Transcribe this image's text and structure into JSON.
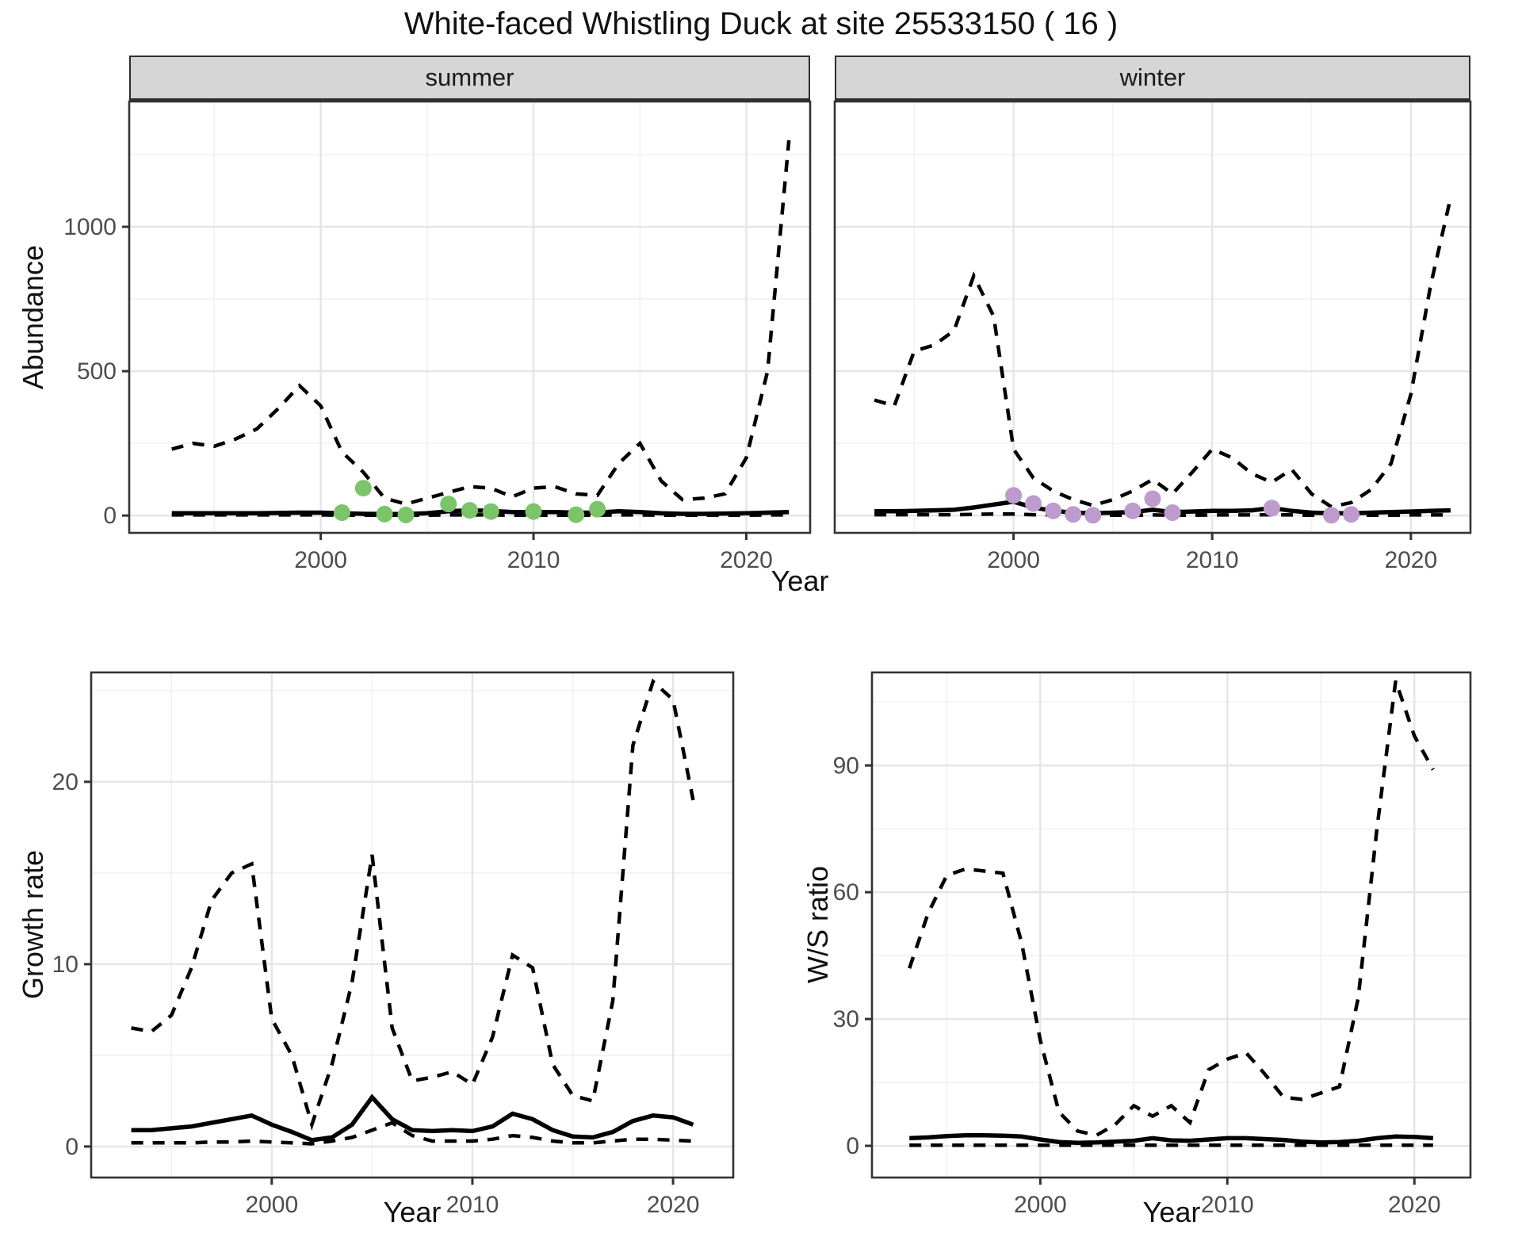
{
  "title": "White-faaced placeholder",
  "colors": {
    "summer_points": "#7cc46a",
    "winter_points": "#bd9bcd",
    "line": "#000000",
    "strip_bg": "#d5d5d5",
    "grid_major": "#e5e5e5",
    "grid_minor": "#f1f1f1",
    "tick_text": "#4d4d4d",
    "panel_border": "#333333"
  },
  "axis_titles": {
    "abundance": "Abundance",
    "year_top": "Year",
    "growth": "Growth rate",
    "ws": "W/S ratio",
    "year_growth": "Year",
    "year_ws": "Year"
  },
  "facets": {
    "summer": "summer",
    "winter": "winter"
  },
  "chart_data": [
    {
      "id": "summer",
      "type": "line",
      "facet_label": "summer",
      "ylabel": "Abundance",
      "xlabel": "Year",
      "xlim": [
        1991,
        2023
      ],
      "ylim": [
        -60,
        1434
      ],
      "xticks": [
        2000,
        2010,
        2020
      ],
      "xtick_labels": [
        "2000",
        "2010",
        "2020"
      ],
      "xminor": [
        1995,
        2005,
        2015
      ],
      "yticks": [
        0,
        500,
        1000
      ],
      "ytick_labels": [
        "0",
        "500",
        "1000"
      ],
      "yminor": [
        250,
        750,
        1250
      ],
      "show_y_labels": true,
      "x": [
        1993,
        1994,
        1995,
        1996,
        1997,
        1998,
        1999,
        2000,
        2001,
        2002,
        2003,
        2004,
        2005,
        2006,
        2007,
        2008,
        2009,
        2010,
        2011,
        2012,
        2013,
        2014,
        2015,
        2016,
        2017,
        2018,
        2019,
        2020,
        2021,
        2022
      ],
      "series": [
        {
          "name": "upper_ci",
          "style": "dashed",
          "values": [
            230,
            250,
            240,
            265,
            300,
            370,
            450,
            380,
            220,
            150,
            60,
            40,
            60,
            80,
            100,
            95,
            65,
            95,
            100,
            75,
            70,
            180,
            250,
            120,
            55,
            60,
            75,
            200,
            500,
            1300
          ]
        },
        {
          "name": "median",
          "style": "solid",
          "values": [
            8,
            8,
            8,
            8,
            8,
            9,
            10,
            10,
            8,
            6,
            5,
            5,
            8,
            15,
            18,
            16,
            12,
            12,
            12,
            10,
            10,
            15,
            12,
            8,
            6,
            6,
            7,
            8,
            10,
            12
          ]
        },
        {
          "name": "lower_ci",
          "style": "dashed",
          "values": [
            2,
            2,
            2,
            2,
            2,
            2,
            2,
            2,
            1,
            1,
            1,
            1,
            1,
            2,
            2,
            2,
            1,
            1,
            1,
            1,
            1,
            2,
            2,
            1,
            1,
            1,
            1,
            1,
            2,
            2
          ]
        }
      ],
      "points": {
        "name": "summer_counts",
        "color_key": "summer_points",
        "xy": [
          [
            2001,
            10
          ],
          [
            2002,
            95
          ],
          [
            2003,
            5
          ],
          [
            2004,
            2
          ],
          [
            2006,
            40
          ],
          [
            2007,
            18
          ],
          [
            2008,
            14
          ],
          [
            2010,
            14
          ],
          [
            2012,
            3
          ],
          [
            2013,
            22
          ]
        ]
      }
    },
    {
      "id": "winter",
      "type": "line",
      "facet_label": "winter",
      "ylabel": "Abundance",
      "xlabel": "Year",
      "xlim": [
        1991,
        2023
      ],
      "ylim": [
        -60,
        1434
      ],
      "xticks": [
        2000,
        2010,
        2020
      ],
      "xtick_labels": [
        "2000",
        "2010",
        "2020"
      ],
      "xminor": [
        1995,
        2005,
        2015
      ],
      "yticks": [
        0,
        500,
        1000
      ],
      "ytick_labels": [
        "0",
        "500",
        "1000"
      ],
      "yminor": [
        250,
        750,
        1250
      ],
      "show_y_labels": false,
      "x": [
        1993,
        1994,
        1995,
        1996,
        1997,
        1998,
        1999,
        2000,
        2001,
        2002,
        2003,
        2004,
        2005,
        2006,
        2007,
        2008,
        2009,
        2010,
        2011,
        2012,
        2013,
        2014,
        2015,
        2016,
        2017,
        2018,
        2019,
        2020,
        2021,
        2022
      ],
      "series": [
        {
          "name": "upper_ci",
          "style": "dashed",
          "values": [
            400,
            380,
            570,
            590,
            640,
            830,
            690,
            230,
            130,
            85,
            55,
            35,
            55,
            85,
            125,
            75,
            150,
            230,
            200,
            145,
            115,
            160,
            75,
            30,
            45,
            90,
            180,
            420,
            800,
            1100
          ]
        },
        {
          "name": "median",
          "style": "solid",
          "values": [
            15,
            15,
            16,
            18,
            20,
            28,
            38,
            48,
            28,
            16,
            10,
            8,
            10,
            12,
            20,
            12,
            14,
            16,
            16,
            18,
            26,
            16,
            10,
            8,
            8,
            10,
            12,
            14,
            16,
            18
          ]
        },
        {
          "name": "lower_ci",
          "style": "dashed",
          "values": [
            3,
            3,
            3,
            3,
            3,
            4,
            5,
            5,
            3,
            2,
            1,
            1,
            1,
            1,
            2,
            1,
            1,
            2,
            2,
            2,
            3,
            2,
            1,
            1,
            1,
            1,
            1,
            2,
            2,
            2
          ]
        }
      ],
      "points": {
        "name": "winter_counts",
        "color_key": "winter_points",
        "xy": [
          [
            2000,
            70
          ],
          [
            2001,
            42
          ],
          [
            2002,
            16
          ],
          [
            2003,
            4
          ],
          [
            2004,
            1
          ],
          [
            2006,
            16
          ],
          [
            2007,
            58
          ],
          [
            2008,
            10
          ],
          [
            2013,
            26
          ],
          [
            2016,
            1
          ],
          [
            2017,
            4
          ]
        ]
      }
    },
    {
      "id": "growth",
      "type": "line",
      "facet_label": "",
      "ylabel": "Growth rate",
      "xlabel": "Year",
      "xlim": [
        1991,
        2023
      ],
      "ylim": [
        -1.7,
        26
      ],
      "xticks": [
        2000,
        2010,
        2020
      ],
      "xtick_labels": [
        "2000",
        "2010",
        "2020"
      ],
      "xminor": [
        1995,
        2005,
        2015
      ],
      "yticks": [
        0,
        10,
        20
      ],
      "ytick_labels": [
        "0",
        "10",
        "20"
      ],
      "yminor": [
        5,
        15,
        25
      ],
      "show_y_labels": true,
      "x": [
        1993,
        1994,
        1995,
        1996,
        1997,
        1998,
        1999,
        2000,
        2001,
        2002,
        2003,
        2004,
        2005,
        2006,
        2007,
        2008,
        2009,
        2010,
        2011,
        2012,
        2013,
        2014,
        2015,
        2016,
        2017,
        2018,
        2019,
        2020,
        2021
      ],
      "series": [
        {
          "name": "upper_ci",
          "style": "dashed",
          "values": [
            6.5,
            6.3,
            7.2,
            9.8,
            13.5,
            15.0,
            15.5,
            7.0,
            5.0,
            1.2,
            4.5,
            9.0,
            16.0,
            6.5,
            3.6,
            3.8,
            4.1,
            3.4,
            6.0,
            10.5,
            9.8,
            4.5,
            2.8,
            2.5,
            8.0,
            22.0,
            25.5,
            24.5,
            19.0
          ]
        },
        {
          "name": "median",
          "style": "solid",
          "values": [
            0.9,
            0.9,
            1.0,
            1.1,
            1.3,
            1.5,
            1.7,
            1.2,
            0.8,
            0.35,
            0.5,
            1.2,
            2.7,
            1.5,
            0.9,
            0.85,
            0.9,
            0.85,
            1.1,
            1.8,
            1.5,
            0.9,
            0.55,
            0.5,
            0.8,
            1.4,
            1.7,
            1.6,
            1.2
          ]
        },
        {
          "name": "lower_ci",
          "style": "dashed",
          "values": [
            0.2,
            0.2,
            0.2,
            0.2,
            0.25,
            0.25,
            0.3,
            0.25,
            0.2,
            0.15,
            0.3,
            0.5,
            0.9,
            1.3,
            0.6,
            0.3,
            0.3,
            0.3,
            0.4,
            0.6,
            0.5,
            0.3,
            0.2,
            0.2,
            0.3,
            0.4,
            0.4,
            0.35,
            0.3
          ]
        }
      ],
      "points": null
    },
    {
      "id": "ws_ratio",
      "type": "line",
      "facet_label": "",
      "ylabel": "W/S ratio",
      "xlabel": "Year",
      "xlim": [
        1991,
        2023
      ],
      "ylim": [
        -7.5,
        112
      ],
      "xticks": [
        2000,
        2010,
        2020
      ],
      "xtick_labels": [
        "2000",
        "2010",
        "2020"
      ],
      "xminor": [
        1995,
        2005,
        2015
      ],
      "yticks": [
        0,
        30,
        60,
        90
      ],
      "ytick_labels": [
        "0",
        "30",
        "60",
        "90"
      ],
      "yminor": [
        15,
        45,
        75,
        105
      ],
      "show_y_labels": true,
      "x": [
        1993,
        1994,
        1995,
        1996,
        1997,
        1998,
        1999,
        2000,
        2001,
        2002,
        2003,
        2004,
        2005,
        2006,
        2007,
        2008,
        2009,
        2010,
        2011,
        2012,
        2013,
        2014,
        2015,
        2016,
        2017,
        2018,
        2019,
        2020,
        2021
      ],
      "series": [
        {
          "name": "upper_ci",
          "style": "dashed",
          "values": [
            42,
            55,
            64,
            65.5,
            65,
            64.5,
            48,
            25,
            8,
            3.5,
            2.5,
            5,
            9.5,
            7,
            9.5,
            5.5,
            18,
            20.5,
            22,
            17,
            11.5,
            11,
            12.5,
            14,
            35,
            75,
            110,
            97,
            89
          ]
        },
        {
          "name": "median",
          "style": "solid",
          "values": [
            1.8,
            2.0,
            2.3,
            2.5,
            2.5,
            2.4,
            2.2,
            1.5,
            0.9,
            0.7,
            0.8,
            1.0,
            1.2,
            1.8,
            1.3,
            1.2,
            1.5,
            1.8,
            1.8,
            1.6,
            1.4,
            1.0,
            0.8,
            0.9,
            1.2,
            1.8,
            2.2,
            2.1,
            1.8
          ]
        },
        {
          "name": "lower_ci",
          "style": "dashed",
          "values": [
            0.15,
            0.15,
            0.15,
            0.15,
            0.15,
            0.15,
            0.15,
            0.15,
            0.15,
            0.15,
            0.15,
            0.15,
            0.15,
            0.15,
            0.15,
            0.15,
            0.15,
            0.15,
            0.15,
            0.15,
            0.15,
            0.15,
            0.15,
            0.15,
            0.15,
            0.15,
            0.15,
            0.15,
            0.15
          ]
        }
      ],
      "points": null
    }
  ],
  "title_override": "White-faced Whistling Duck at site 25533150 ( 16 )"
}
